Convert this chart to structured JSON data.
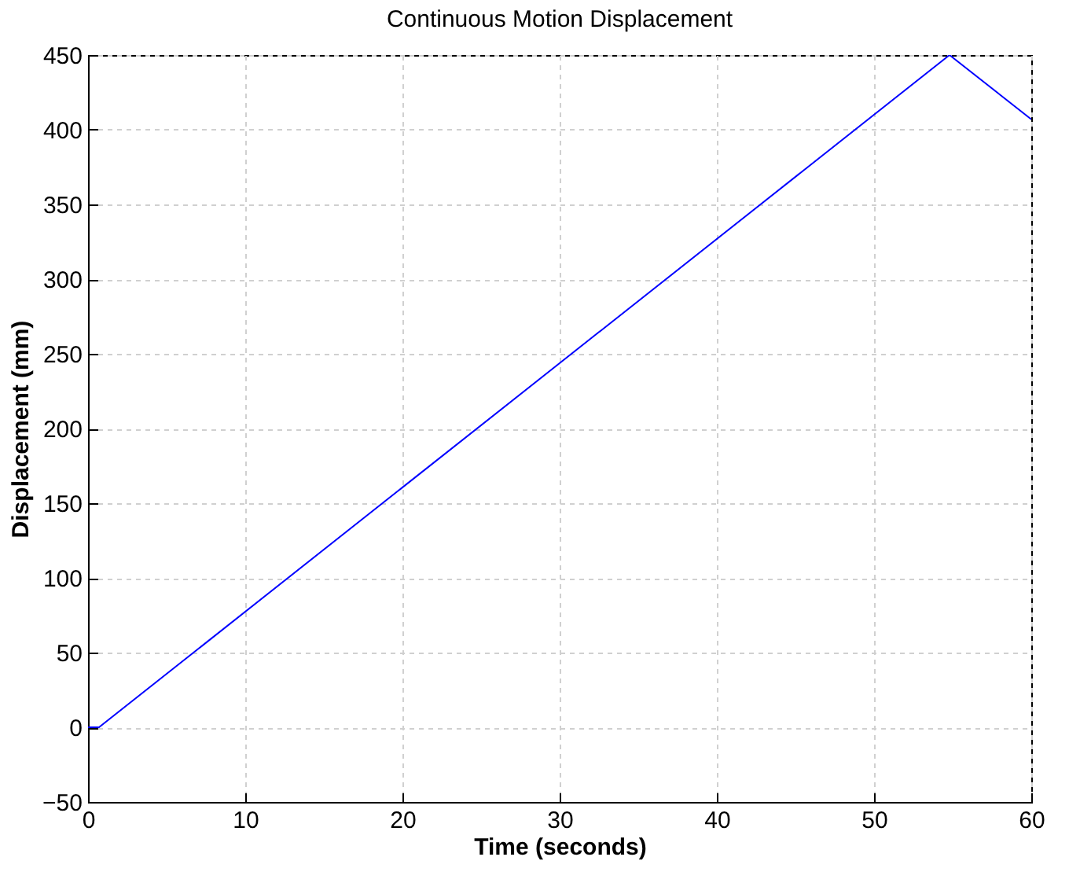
{
  "chart_data": {
    "type": "line",
    "title": "Continuous Motion Displacement",
    "xlabel": "Time (seconds)",
    "ylabel": "Displacement (mm)",
    "series": [
      {
        "color": "#0000ff",
        "x": [
          0,
          0.7,
          54.8,
          60
        ],
        "values": [
          0,
          0,
          450,
          407
        ]
      }
    ],
    "xlim": [
      0,
      60
    ],
    "xticks": [
      0,
      10,
      20,
      30,
      40,
      50,
      60
    ],
    "ylim": [
      -50,
      450
    ],
    "yticks": [
      -50,
      0,
      50,
      100,
      150,
      200,
      250,
      300,
      350,
      400,
      450
    ],
    "grid": true,
    "line_style": "solid",
    "marker": "none"
  }
}
